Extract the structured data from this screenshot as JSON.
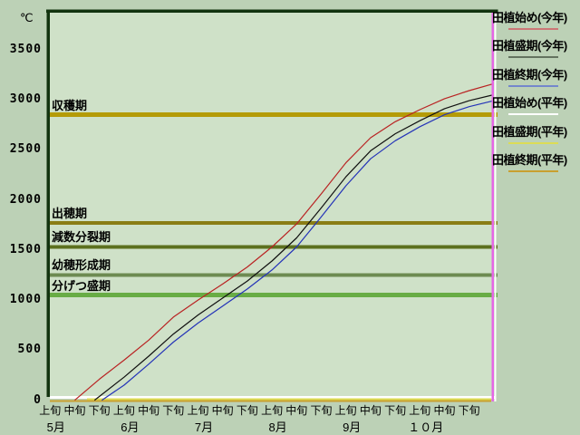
{
  "page": {
    "bg": "#bcd1b6",
    "plot_bg": "#cfe1c8",
    "border_color": "#12330f",
    "marker_color": "#e567e5",
    "right_edge_color": "#ffffff"
  },
  "y_axis": {
    "unit": "℃",
    "ticks": [
      3500,
      3000,
      2500,
      2000,
      1500,
      1000,
      500,
      0
    ]
  },
  "x_axis": {
    "periods": [
      "上旬",
      "中旬",
      "下旬",
      "上旬",
      "中旬",
      "下旬",
      "上旬",
      "中旬",
      "下旬",
      "上旬",
      "中旬",
      "下旬",
      "上旬",
      "中旬",
      "下旬",
      "上旬",
      "中旬",
      "下旬"
    ],
    "months": [
      {
        "label": "5月",
        "tick": 0
      },
      {
        "label": "6月",
        "tick": 3
      },
      {
        "label": "7月",
        "tick": 6
      },
      {
        "label": "8月",
        "tick": 9
      },
      {
        "label": "9月",
        "tick": 12
      },
      {
        "label": "１０月",
        "tick": 15
      }
    ]
  },
  "stages": [
    {
      "label": "収穫期",
      "value": 2850,
      "color": "#b49b07",
      "thickness": 5
    },
    {
      "label": "出穂期",
      "value": 1770,
      "color": "#8a7d15",
      "thickness": 4
    },
    {
      "label": "減数分裂期",
      "value": 1530,
      "color": "#5c701e",
      "thickness": 4
    },
    {
      "label": "幼穂形成期",
      "value": 1250,
      "color": "#6d8b52",
      "thickness": 4
    },
    {
      "label": "分げつ盛期",
      "value": 1050,
      "color": "#68ac45",
      "thickness": 5
    }
  ],
  "legend": [
    {
      "label": "田植始め(今年)",
      "line_color": "#cc7777"
    },
    {
      "label": "田植盛期(今年)",
      "line_color": "#63725f"
    },
    {
      "label": "田植終期(今年)",
      "line_color": "#7487cc"
    },
    {
      "label": "田植始め(平年)",
      "line_color": "#ffffff"
    },
    {
      "label": "田植盛期(平年)",
      "line_color": "#dcdc55"
    },
    {
      "label": "田植終期(平年)",
      "line_color": "#c9a030"
    }
  ],
  "chart_data": {
    "type": "line",
    "ylabel": "℃",
    "ylim": [
      0,
      3750
    ],
    "grid": false,
    "legend_position": "right",
    "x_categories": [
      "5月上旬",
      "5月中旬",
      "5月下旬",
      "6月上旬",
      "6月中旬",
      "6月下旬",
      "7月上旬",
      "7月中旬",
      "7月下旬",
      "8月上旬",
      "8月中旬",
      "8月下旬",
      "9月上旬",
      "9月中旬",
      "9月下旬",
      "10月上旬",
      "10月中旬",
      "10月下旬"
    ],
    "x_note": "points are [t, cumulative_temperature]; t in 10-day-period units, t=0 start of 5月上旬, t=18 end of 10月下旬",
    "series": [
      {
        "name": "田植始め(今年)",
        "color": "#b92222",
        "points": [
          [
            1,
            0
          ],
          [
            2,
            210
          ],
          [
            3,
            400
          ],
          [
            4,
            600
          ],
          [
            5,
            830
          ],
          [
            6,
            1000
          ],
          [
            7,
            1160
          ],
          [
            8,
            1330
          ],
          [
            9,
            1530
          ],
          [
            10,
            1760
          ],
          [
            11,
            2060
          ],
          [
            12,
            2370
          ],
          [
            13,
            2620
          ],
          [
            14,
            2780
          ],
          [
            15,
            2900
          ],
          [
            16,
            3010
          ],
          [
            17,
            3090
          ],
          [
            18,
            3160
          ]
        ]
      },
      {
        "name": "田植盛期(今年)",
        "color": "#101010",
        "points": [
          [
            1.8,
            0
          ],
          [
            3,
            230
          ],
          [
            4,
            440
          ],
          [
            5,
            660
          ],
          [
            6,
            850
          ],
          [
            7,
            1020
          ],
          [
            8,
            1190
          ],
          [
            9,
            1390
          ],
          [
            10,
            1620
          ],
          [
            11,
            1920
          ],
          [
            12,
            2230
          ],
          [
            13,
            2490
          ],
          [
            14,
            2660
          ],
          [
            15,
            2790
          ],
          [
            16,
            2910
          ],
          [
            17,
            2990
          ],
          [
            18,
            3050
          ]
        ]
      },
      {
        "name": "田植終期(今年)",
        "color": "#2433b8",
        "points": [
          [
            2.1,
            0
          ],
          [
            3,
            150
          ],
          [
            4,
            360
          ],
          [
            5,
            580
          ],
          [
            6,
            770
          ],
          [
            7,
            940
          ],
          [
            8,
            1110
          ],
          [
            9,
            1300
          ],
          [
            10,
            1530
          ],
          [
            11,
            1830
          ],
          [
            12,
            2140
          ],
          [
            13,
            2410
          ],
          [
            14,
            2590
          ],
          [
            15,
            2730
          ],
          [
            16,
            2850
          ],
          [
            17,
            2930
          ],
          [
            18,
            2990
          ]
        ]
      },
      {
        "name": "田植始め(平年)",
        "color": "#ffffff",
        "points": [
          [
            0,
            0
          ],
          [
            18,
            0
          ]
        ]
      },
      {
        "name": "田植盛期(平年)",
        "color": "#dcdc55",
        "points": [
          [
            1.5,
            0
          ],
          [
            18,
            0
          ]
        ]
      },
      {
        "name": "田植終期(平年)",
        "color": "#c9a030",
        "points": [
          [
            0,
            0
          ],
          [
            18,
            0
          ]
        ]
      }
    ],
    "stage_lines": [
      {
        "label": "収穫期",
        "value": 2850
      },
      {
        "label": "出穂期",
        "value": 1770
      },
      {
        "label": "減数分裂期",
        "value": 1530
      },
      {
        "label": "幼穂形成期",
        "value": 1250
      },
      {
        "label": "分げつ盛期",
        "value": 1050
      }
    ]
  }
}
